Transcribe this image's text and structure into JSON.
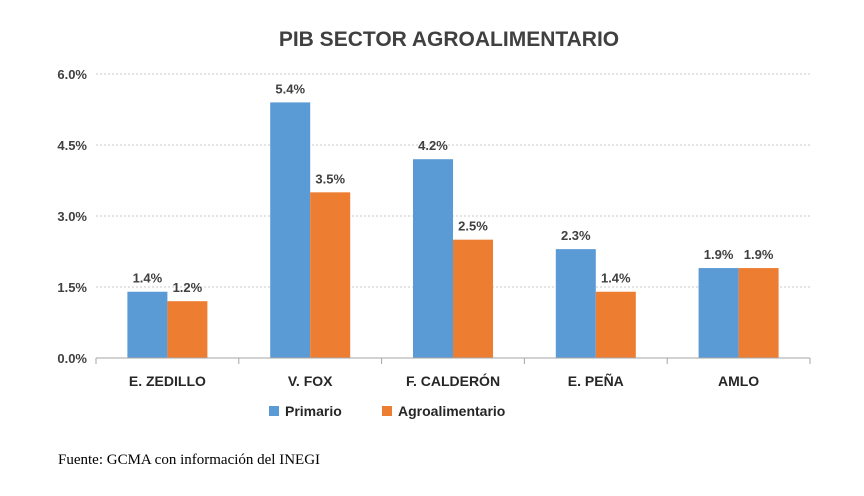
{
  "chart_data": {
    "type": "bar",
    "title": "PIB SECTOR AGROALIMENTARIO",
    "categories": [
      "E. ZEDILLO",
      "V. FOX",
      "F. CALDERÓN",
      "E. PEÑA",
      "AMLO"
    ],
    "series": [
      {
        "name": "Primario",
        "values": [
          1.4,
          5.4,
          4.2,
          2.3,
          1.9
        ],
        "labels": [
          "1.4%",
          "5.4%",
          "4.2%",
          "2.3%",
          "1.9%"
        ],
        "color": "#5b9bd5"
      },
      {
        "name": "Agroalimentario",
        "values": [
          1.2,
          3.5,
          2.5,
          1.4,
          1.9
        ],
        "labels": [
          "1.2%",
          "3.5%",
          "2.5%",
          "1.4%",
          "1.9%"
        ],
        "color": "#ed7d31"
      }
    ],
    "yticks": [
      0,
      1.5,
      3.0,
      4.5,
      6.0
    ],
    "ytick_labels": [
      "0.0%",
      "1.5%",
      "3.0%",
      "4.5%",
      "6.0%"
    ],
    "ylim": [
      0,
      6.0
    ],
    "grid": true,
    "legend_position": "bottom"
  },
  "source_note": "Fuente: GCMA con información del INEGI"
}
